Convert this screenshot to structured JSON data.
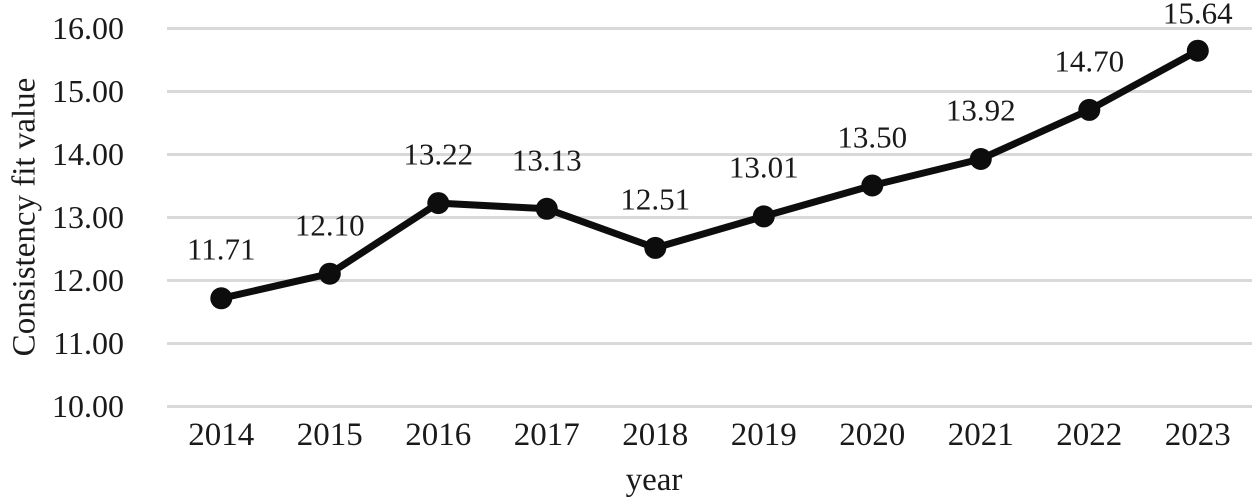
{
  "chart_data": {
    "type": "line",
    "title": "",
    "xlabel": "year",
    "ylabel": "Consistency fit value",
    "x": [
      "2014",
      "2015",
      "2016",
      "2017",
      "2018",
      "2019",
      "2020",
      "2021",
      "2022",
      "2023"
    ],
    "series": [
      {
        "name": "Consistency fit value",
        "values": [
          11.71,
          12.1,
          13.22,
          13.13,
          12.51,
          13.01,
          13.5,
          13.92,
          14.7,
          15.64
        ]
      }
    ],
    "data_labels": [
      "11.71",
      "12.10",
      "13.22",
      "13.13",
      "12.51",
      "13.01",
      "13.50",
      "13.92",
      "14.70",
      "15.64"
    ],
    "y_tick_labels": [
      "16.00",
      "15.00",
      "14.00",
      "13.00",
      "12.00",
      "11.00",
      "10.00"
    ],
    "ylim": [
      10,
      16
    ],
    "grid": "horizontal",
    "legend": "none",
    "marker": "circle",
    "colors": {
      "line": "#0d0d0d",
      "marker": "#0d0d0d",
      "gridline": "#d9d9d9",
      "text": "#1a1a1a",
      "background": "#ffffff"
    }
  }
}
